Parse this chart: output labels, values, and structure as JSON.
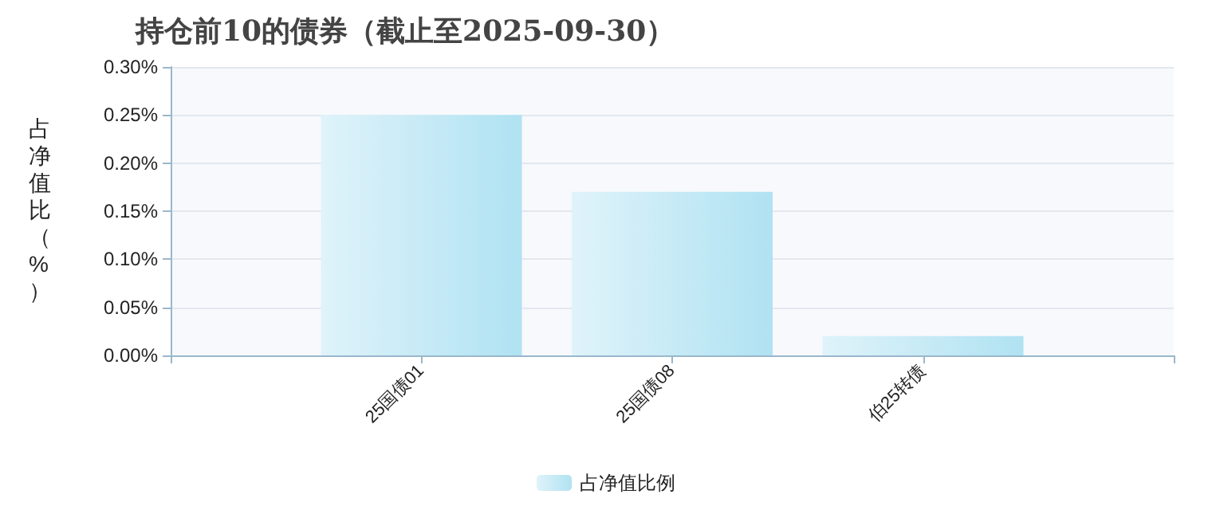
{
  "chart_data": {
    "type": "bar",
    "title": "持仓前10的债券（截止至2025-09-30）",
    "ylabel": "占净值比（%）",
    "categories": [
      null,
      "25国债01",
      "25国债08",
      "伯25转债",
      null
    ],
    "series": [
      {
        "name": "占净值比例",
        "color": "#b0e2f2",
        "values": [
          null,
          0.25,
          0.17,
          0.02,
          null
        ]
      }
    ],
    "ylim": [
      0,
      0.3
    ],
    "yticks": [
      {
        "value": 0,
        "label": "0.00%"
      },
      {
        "value": 0.05,
        "label": "0.05%"
      },
      {
        "value": 0.1,
        "label": "0.10%"
      },
      {
        "value": 0.15,
        "label": "0.15%"
      },
      {
        "value": 0.2,
        "label": "0.20%"
      },
      {
        "value": 0.25,
        "label": "0.25%"
      },
      {
        "value": 0.3,
        "label": "0.30%"
      }
    ],
    "grid": "y",
    "legend": "bottom"
  }
}
